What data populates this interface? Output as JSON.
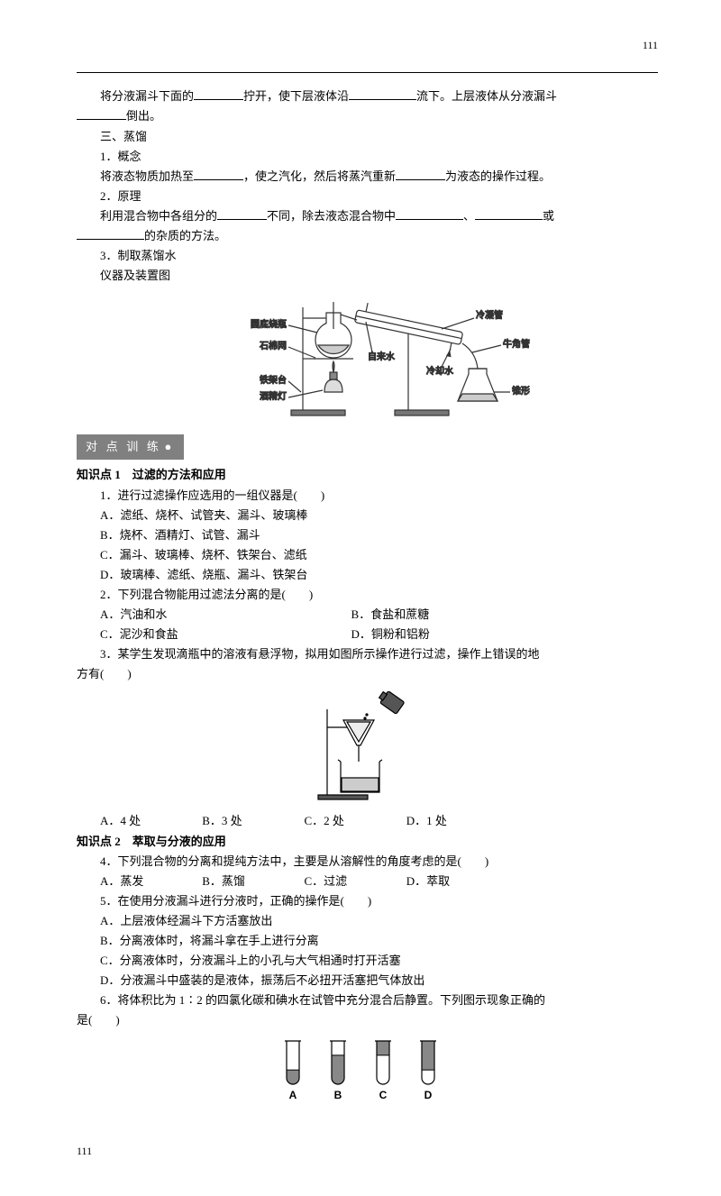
{
  "page_number_top": "111",
  "page_number_bottom": "111",
  "intro": {
    "line1_a": "将分液漏斗下面的",
    "line1_b": "拧开，使下层液体沿",
    "line1_c": "流下。上层液体从分液漏斗",
    "line2_a": "倒出。",
    "sec3_title": "三、蒸馏",
    "p1_title": "1．概念",
    "p1_a": "将液态物质加热至",
    "p1_b": "，使之汽化，然后将蒸汽重新",
    "p1_c": "为液态的操作过程。",
    "p2_title": "2．原理",
    "p2_a": "利用混合物中各组分的",
    "p2_b": "不同，除去液态混合物中",
    "p2_c": "、",
    "p2_d": "或",
    "p2_e": "的杂质的方法。",
    "p3_title": "3．制取蒸馏水",
    "p3_sub": "仪器及装置图"
  },
  "distill_diagram": {
    "labels": {
      "flask": "圆底烧瓶",
      "gauze": "石棉网",
      "stand": "铁架台",
      "lamp": "酒精灯",
      "water_in": "自来水",
      "condenser": "冷凝管",
      "cooling": "冷却水",
      "adapter": "牛角管",
      "conical": "锥形瓶"
    },
    "colors": {
      "stroke": "#333333",
      "fill": "#e0e0e0",
      "text": "#000000"
    }
  },
  "badge_text": "对 点 训 练",
  "kp1": {
    "title": "知识点 1　过滤的方法和应用",
    "q1": "1．进行过滤操作应选用的一组仪器是(　　)",
    "q1A": "A．滤纸、烧杯、试管夹、漏斗、玻璃棒",
    "q1B": "B．烧杯、酒精灯、试管、漏斗",
    "q1C": "C．漏斗、玻璃棒、烧杯、铁架台、滤纸",
    "q1D": "D．玻璃棒、滤纸、烧瓶、漏斗、铁架台",
    "q2": "2．下列混合物能用过滤法分离的是(　　)",
    "q2A": "A．汽油和水",
    "q2B": "B．食盐和蔗糖",
    "q2C": "C．泥沙和食盐",
    "q2D": "D．铜粉和铝粉",
    "q3a": "3．某学生发现滴瓶中的溶液有悬浮物，拟用如图所示操作进行过滤，操作上错误的地",
    "q3b": "方有(　　)",
    "q3A": "A．4 处",
    "q3B": "B．3 处",
    "q3C": "C．2 处",
    "q3D": "D．1 处"
  },
  "filter_diagram": {
    "colors": {
      "stroke": "#000000",
      "fill_dark": "#4a4a4a",
      "fill_light": "#d0d0d0"
    }
  },
  "kp2": {
    "title": "知识点 2　萃取与分液的应用",
    "q4": "4．下列混合物的分离和提纯方法中，主要是从溶解性的角度考虑的是(　　)",
    "q4A": "A．蒸发",
    "q4B": "B．蒸馏",
    "q4C": "C．过滤",
    "q4D": "D．萃取",
    "q5": "5．在使用分液漏斗进行分液时，正确的操作是(　　)",
    "q5A": "A．上层液体经漏斗下方活塞放出",
    "q5B": "B．分离液体时，将漏斗拿在手上进行分离",
    "q5C": "C．分离液体时，分液漏斗上的小孔与大气相通时打开活塞",
    "q5D": "D．分液漏斗中盛装的是液体，振荡后不必扭开活塞把气体放出",
    "q6a": "6．将体积比为 1∶2 的四氯化碳和碘水在试管中充分混合后静置。下列图示现象正确的",
    "q6b": "是(　　)"
  },
  "tubes": {
    "labels": [
      "A",
      "B",
      "C",
      "D"
    ],
    "colors": {
      "stroke": "#000000",
      "light": "#ffffff",
      "dark": "#888888"
    },
    "config": [
      {
        "top_dark": false,
        "bottom_dark": true,
        "split": 0.67
      },
      {
        "top_dark": false,
        "bottom_dark": true,
        "split": 0.33
      },
      {
        "top_dark": true,
        "bottom_dark": false,
        "split": 0.33
      },
      {
        "top_dark": true,
        "bottom_dark": false,
        "split": 0.67
      }
    ]
  }
}
